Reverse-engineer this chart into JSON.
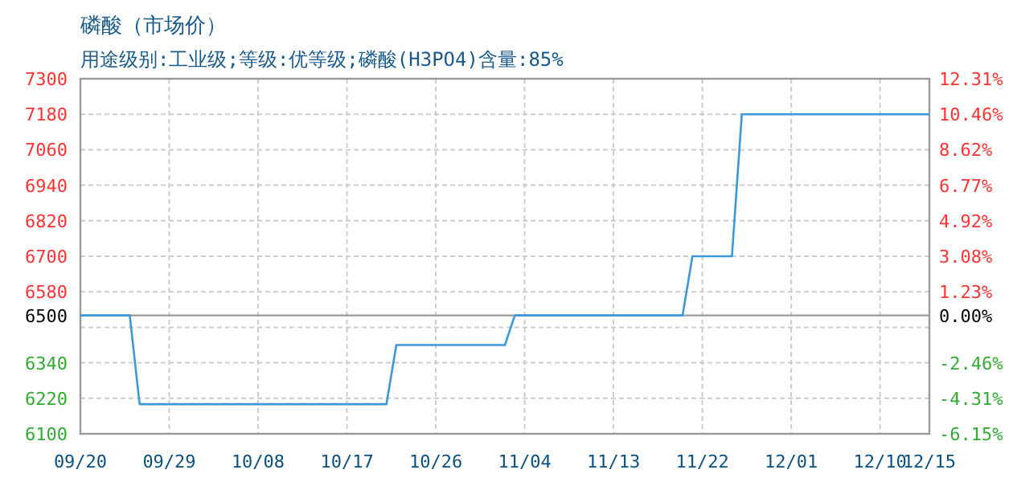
{
  "chart_data": {
    "type": "line",
    "title": "磷酸（市场价）",
    "subtitle": "用途级别:工业级;等级:优等级;磷酸(H3PO4)含量:85%",
    "x": [
      "--09-20",
      "--09-25",
      "--09-26",
      "--10-21",
      "--10-22",
      "--11-02",
      "--11-03",
      "--11-20",
      "--11-21",
      "--11-25",
      "--11-26",
      "--12-15"
    ],
    "values": [
      6500,
      6500,
      6200,
      6200,
      6400,
      6400,
      6500,
      6500,
      6700,
      6700,
      7180,
      7180
    ],
    "color": "#3a9ad9",
    "xlim": [
      "--09-20",
      "--12-15"
    ],
    "xticks": [
      {
        "value": "--09-20",
        "label": "09/20"
      },
      {
        "value": "--09-29",
        "label": "09/29"
      },
      {
        "value": "--10-08",
        "label": "10/08"
      },
      {
        "value": "--10-17",
        "label": "10/17"
      },
      {
        "value": "--10-26",
        "label": "10/26"
      },
      {
        "value": "--11-04",
        "label": "11/04"
      },
      {
        "value": "--11-13",
        "label": "11/13"
      },
      {
        "value": "--11-22",
        "label": "11/22"
      },
      {
        "value": "--12-01",
        "label": "12/01"
      },
      {
        "value": "--12-10",
        "label": "12/10"
      },
      {
        "value": "--12-15",
        "label": "12/15"
      }
    ],
    "ylim": [
      6100,
      7300
    ],
    "yticks": [
      6100,
      6220,
      6340,
      {
        "value": 6460,
        "label": null
      },
      6500,
      6580,
      6700,
      6820,
      6940,
      7060,
      7180,
      7300
    ],
    "y2lim": [
      -6.15,
      12.31
    ],
    "y2ticks": [
      {
        "value": -6.15,
        "label": "-6.15%"
      },
      {
        "value": -4.31,
        "label": "-4.31%"
      },
      {
        "value": -2.46,
        "label": "-2.46%"
      },
      {
        "value": 0,
        "label": "0.00%"
      },
      {
        "value": 1.23,
        "label": "1.23%"
      },
      {
        "value": 3.08,
        "label": "3.08%"
      },
      {
        "value": 4.92,
        "label": "4.92%"
      },
      {
        "value": 6.77,
        "label": "6.77%"
      },
      {
        "value": 8.62,
        "label": "8.62%"
      },
      {
        "value": 10.46,
        "label": "10.46%"
      },
      {
        "value": 12.31,
        "label": "12.31%"
      }
    ],
    "grid": true,
    "ref_lines": [
      {
        "axis": "y",
        "value": 6500,
        "color": "#999999",
        "line_style": "solid"
      }
    ]
  }
}
